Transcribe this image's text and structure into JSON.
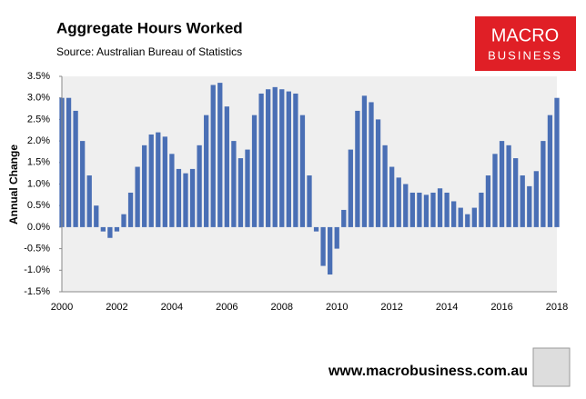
{
  "chart_data": {
    "type": "bar",
    "title": "Aggregate Hours Worked",
    "subtitle": "Source: Australian Bureau of Statistics",
    "y_label": "Annual Change",
    "logo": [
      "MACRO",
      "BUSINESS"
    ],
    "footer": "www.macrobusiness.com.au",
    "color": "#4a6fb5",
    "grid": false,
    "categories": [
      "2000",
      null,
      null,
      null,
      null,
      null,
      null,
      null,
      "2002",
      null,
      null,
      null,
      null,
      null,
      null,
      null,
      "2004",
      null,
      null,
      null,
      null,
      null,
      null,
      null,
      "2006",
      null,
      null,
      null,
      null,
      null,
      null,
      null,
      "2008",
      null,
      null,
      null,
      null,
      null,
      null,
      null,
      "2010",
      null,
      null,
      null,
      null,
      null,
      null,
      null,
      "2012",
      null,
      null,
      null,
      null,
      null,
      null,
      null,
      "2014",
      null,
      null,
      null,
      null,
      null,
      null,
      null,
      "2016",
      null,
      null,
      null,
      null,
      null,
      null,
      null,
      "2018"
    ],
    "values": [
      3.0,
      3.0,
      2.7,
      2.0,
      1.2,
      0.5,
      -0.1,
      -0.25,
      -0.1,
      0.3,
      0.8,
      1.4,
      1.9,
      2.15,
      2.2,
      2.1,
      1.7,
      1.35,
      1.25,
      1.35,
      1.9,
      2.6,
      3.3,
      3.35,
      2.8,
      2.0,
      1.6,
      1.8,
      2.6,
      3.1,
      3.2,
      3.25,
      3.2,
      3.15,
      3.1,
      2.6,
      1.2,
      -0.1,
      -0.9,
      -1.1,
      -0.5,
      0.4,
      1.8,
      2.7,
      3.05,
      2.9,
      2.5,
      1.9,
      1.4,
      1.15,
      1.0,
      0.8,
      0.8,
      0.75,
      0.8,
      0.9,
      0.8,
      0.6,
      0.45,
      0.3,
      0.45,
      0.8,
      1.2,
      1.7,
      2.0,
      1.9,
      1.6,
      1.2,
      0.95,
      1.3,
      2.0,
      2.6,
      3.0
    ],
    "ylim": [
      -1.5,
      3.5
    ],
    "yticks": [
      {
        "value": -1.5,
        "label": "-1.5%"
      },
      {
        "value": -1.0,
        "label": "-1.0%"
      },
      {
        "value": -0.5,
        "label": "-0.5%"
      },
      {
        "value": 0.0,
        "label": "0.0%"
      },
      {
        "value": 0.5,
        "label": "0.5%"
      },
      {
        "value": 1.0,
        "label": "1.0%"
      },
      {
        "value": 1.5,
        "label": "1.5%"
      },
      {
        "value": 2.0,
        "label": "2.0%"
      },
      {
        "value": 2.5,
        "label": "2.5%"
      },
      {
        "value": 3.0,
        "label": "3.0%"
      },
      {
        "value": 3.5,
        "label": "3.5%"
      }
    ]
  }
}
